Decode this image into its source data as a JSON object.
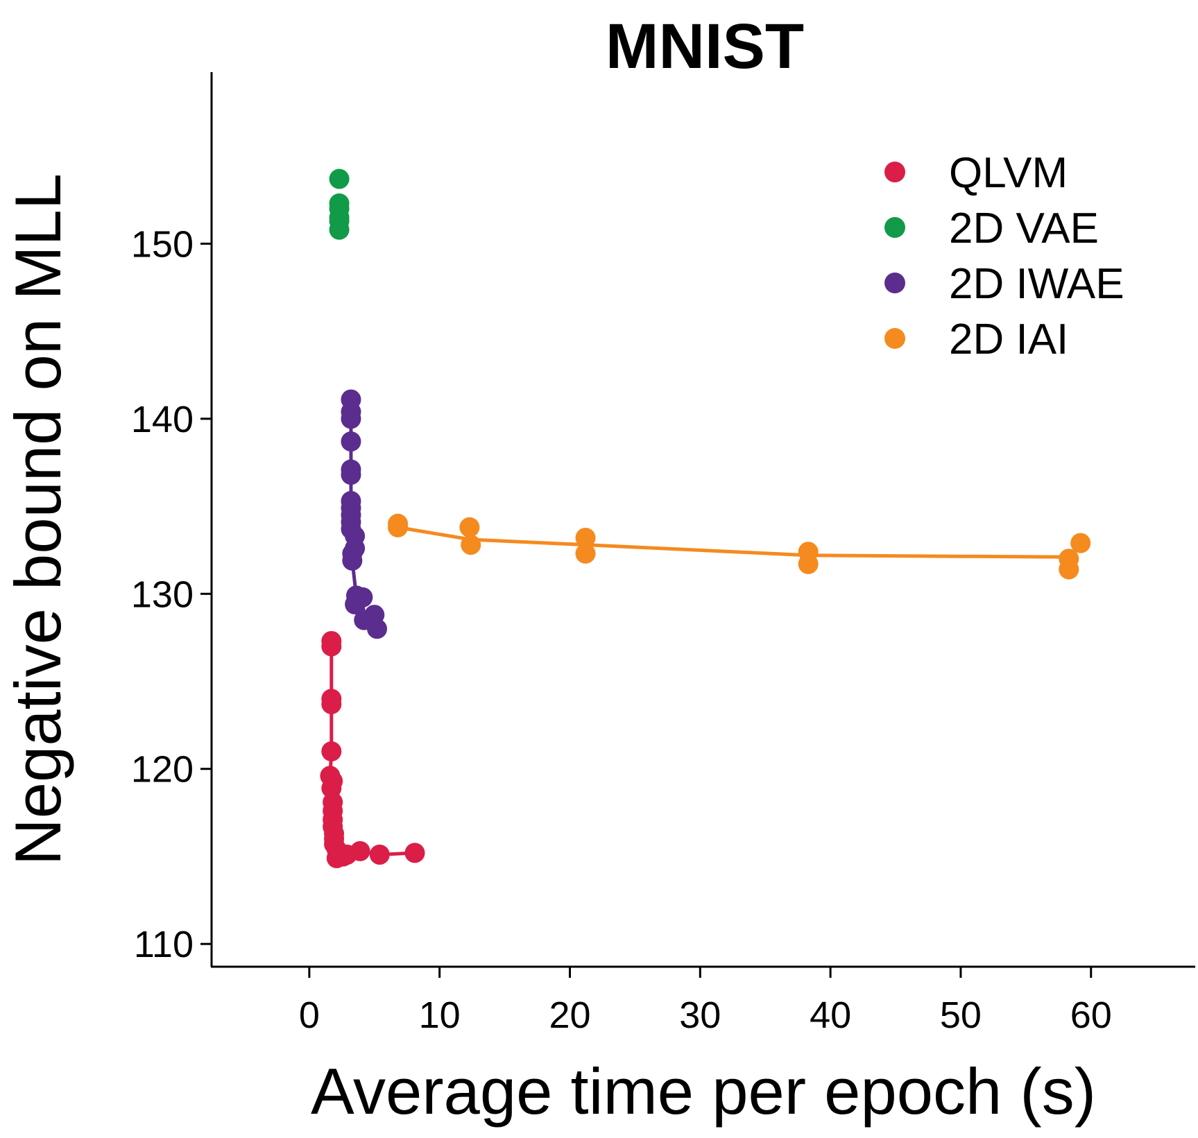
{
  "chart_data": {
    "type": "scatter",
    "title": "MNIST",
    "xlabel": "Average time per epoch (s)",
    "ylabel": "Negative bound on MLL",
    "xlim": [
      -7.5,
      68
    ],
    "ylim": [
      108.7,
      159.8
    ],
    "xticks": [
      0,
      10,
      20,
      30,
      40,
      50,
      60
    ],
    "yticks": [
      110,
      120,
      130,
      140,
      150
    ],
    "grid": false,
    "legend_position": "top-right",
    "series": [
      {
        "name": "QLVM",
        "color": "#DA1E48",
        "connected": true,
        "points": [
          [
            1.7,
            127.3
          ],
          [
            1.7,
            127.0
          ],
          [
            1.7,
            124.0
          ],
          [
            1.7,
            123.7
          ],
          [
            1.7,
            121.0
          ],
          [
            1.6,
            119.6
          ],
          [
            1.8,
            119.3
          ],
          [
            1.7,
            118.9
          ],
          [
            1.8,
            118.1
          ],
          [
            1.8,
            117.6
          ],
          [
            1.8,
            117.1
          ],
          [
            1.8,
            116.7
          ],
          [
            1.9,
            116.3
          ],
          [
            1.9,
            116.0
          ],
          [
            1.9,
            115.7
          ],
          [
            2.1,
            115.4
          ],
          [
            2.2,
            115.1
          ],
          [
            2.1,
            114.9
          ],
          [
            2.6,
            115.0
          ],
          [
            2.9,
            115.1
          ],
          [
            3.9,
            115.3
          ],
          [
            5.4,
            115.1
          ],
          [
            8.1,
            115.2
          ]
        ]
      },
      {
        "name": "2D VAE",
        "color": "#119A48",
        "connected": false,
        "points": [
          [
            2.3,
            153.7
          ],
          [
            2.3,
            152.3
          ],
          [
            2.3,
            152.0
          ],
          [
            2.3,
            151.5
          ],
          [
            2.3,
            151.3
          ],
          [
            2.3,
            150.8
          ]
        ]
      },
      {
        "name": "2D IWAE",
        "color": "#5B2D8E",
        "connected": true,
        "points": [
          [
            3.2,
            141.1
          ],
          [
            3.2,
            140.4
          ],
          [
            3.2,
            140.0
          ],
          [
            3.2,
            138.7
          ],
          [
            3.2,
            137.1
          ],
          [
            3.2,
            136.8
          ],
          [
            3.2,
            135.3
          ],
          [
            3.2,
            134.9
          ],
          [
            3.2,
            134.5
          ],
          [
            3.2,
            134.1
          ],
          [
            3.2,
            133.7
          ],
          [
            3.5,
            133.3
          ],
          [
            3.5,
            132.6
          ],
          [
            3.3,
            132.3
          ],
          [
            3.3,
            131.9
          ],
          [
            3.6,
            129.9
          ],
          [
            3.5,
            129.4
          ],
          [
            4.1,
            129.8
          ],
          [
            4.2,
            128.5
          ],
          [
            5.0,
            128.8
          ],
          [
            5.2,
            128.0
          ]
        ]
      },
      {
        "name": "2D IAI",
        "color": "#F58A1F",
        "connected": true,
        "points": [
          [
            6.8,
            134.0
          ],
          [
            6.8,
            133.8
          ],
          [
            12.3,
            133.8
          ],
          [
            12.4,
            132.8
          ],
          [
            21.2,
            133.2
          ],
          [
            21.2,
            132.3
          ],
          [
            38.3,
            132.4
          ],
          [
            38.3,
            131.7
          ],
          [
            58.3,
            132.0
          ],
          [
            58.3,
            131.4
          ],
          [
            59.2,
            132.9
          ]
        ],
        "line": [
          [
            6.8,
            133.8
          ],
          [
            12.4,
            133.1
          ],
          [
            21.2,
            132.8
          ],
          [
            38.3,
            132.2
          ],
          [
            58.3,
            132.1
          ]
        ]
      }
    ]
  }
}
